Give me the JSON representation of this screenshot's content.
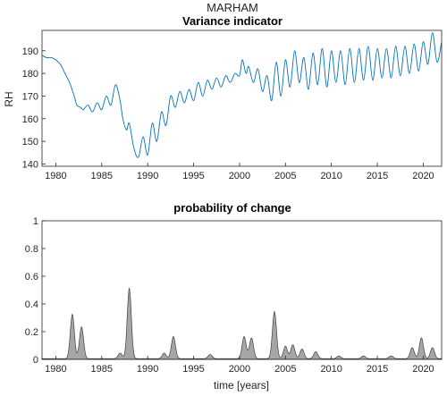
{
  "figure": {
    "suptitle": "MARHAM"
  },
  "chart_data": [
    {
      "type": "line",
      "title": "Variance indicator",
      "xlabel": "",
      "ylabel": "RH",
      "xlim": [
        1978.5,
        2022
      ],
      "ylim": [
        139,
        199
      ],
      "xticks": [
        1980,
        1985,
        1990,
        1995,
        2000,
        2005,
        2010,
        2015,
        2020
      ],
      "yticks": [
        140,
        150,
        160,
        170,
        180,
        190
      ],
      "grid": false,
      "color": "#0072BD",
      "series": [
        {
          "x": [
            1978.5,
            1979.0,
            1979.5,
            1980.0,
            1980.5,
            1981.0,
            1981.5,
            1982.0,
            1982.3,
            1982.7,
            1983.0,
            1983.5,
            1984.0,
            1984.5,
            1985.0,
            1985.5,
            1986.0,
            1986.5,
            1987.0,
            1987.3,
            1987.7,
            1988.0,
            1988.5,
            1989.0,
            1989.5,
            1990.0,
            1990.5,
            1991.0,
            1991.5,
            1992.0,
            1992.5,
            1993.0,
            1993.5,
            1994.0,
            1994.5,
            1995.0,
            1995.5,
            1996.0,
            1996.5,
            1997.0,
            1997.5,
            1998.0,
            1998.5,
            1999.0,
            1999.5,
            2000.0,
            2000.3,
            2000.7,
            2001.0,
            2001.5,
            2002.0,
            2002.5,
            2003.0,
            2003.5,
            2004.0,
            2004.5,
            2005.0,
            2005.5,
            2006.0,
            2006.5,
            2007.0,
            2007.5,
            2008.0,
            2008.5,
            2009.0,
            2009.5,
            2010.0,
            2010.5,
            2011.0,
            2011.5,
            2012.0,
            2012.5,
            2013.0,
            2013.5,
            2014.0,
            2014.5,
            2015.0,
            2015.5,
            2016.0,
            2016.5,
            2017.0,
            2017.5,
            2018.0,
            2018.5,
            2019.0,
            2019.5,
            2020.0,
            2020.5,
            2021.0,
            2021.5,
            2022.0
          ],
          "values": [
            188,
            187,
            187,
            186,
            184,
            180,
            176,
            170,
            166,
            165,
            164,
            166,
            163,
            167,
            164,
            170,
            166,
            175,
            168,
            160,
            155,
            158,
            147,
            143,
            152,
            144,
            158,
            150,
            163,
            157,
            170,
            165,
            172,
            167,
            173,
            168,
            176,
            170,
            177,
            173,
            178,
            174,
            179,
            176,
            180,
            179,
            186,
            180,
            183,
            176,
            182,
            172,
            179,
            168,
            185,
            170,
            186,
            174,
            190,
            176,
            187,
            173,
            189,
            175,
            191,
            174,
            190,
            176,
            190,
            175,
            191,
            176,
            191,
            177,
            192,
            177,
            191,
            178,
            191,
            178,
            192,
            179,
            192,
            180,
            193,
            181,
            194,
            184,
            198,
            185,
            194
          ]
        }
      ]
    },
    {
      "type": "area",
      "title": "probability of change",
      "xlabel": "time [years]",
      "ylabel": "",
      "xlim": [
        1978.5,
        2022
      ],
      "ylim": [
        0,
        1
      ],
      "xticks": [
        1980,
        1985,
        1990,
        1995,
        2000,
        2005,
        2010,
        2015,
        2020
      ],
      "yticks": [
        0,
        0.2,
        0.4,
        0.6,
        0.8,
        1
      ],
      "ytick_labels": [
        "0",
        "0.2",
        "0.4",
        "0.6",
        "0.8",
        "1"
      ],
      "grid": false,
      "fill_color": "#A6A6A6",
      "edge_color": "#404040",
      "peaks": [
        {
          "x": 1981.8,
          "y": 0.32
        },
        {
          "x": 1982.8,
          "y": 0.23
        },
        {
          "x": 1987.0,
          "y": 0.04
        },
        {
          "x": 1988.0,
          "y": 0.51
        },
        {
          "x": 1991.8,
          "y": 0.04
        },
        {
          "x": 1992.8,
          "y": 0.16
        },
        {
          "x": 1996.8,
          "y": 0.03
        },
        {
          "x": 2000.5,
          "y": 0.16
        },
        {
          "x": 2001.3,
          "y": 0.15
        },
        {
          "x": 2003.8,
          "y": 0.34
        },
        {
          "x": 2005.0,
          "y": 0.09
        },
        {
          "x": 2005.8,
          "y": 0.1
        },
        {
          "x": 2006.8,
          "y": 0.07
        },
        {
          "x": 2008.3,
          "y": 0.05
        },
        {
          "x": 2010.8,
          "y": 0.02
        },
        {
          "x": 2013.5,
          "y": 0.02
        },
        {
          "x": 2016.5,
          "y": 0.02
        },
        {
          "x": 2018.8,
          "y": 0.08
        },
        {
          "x": 2019.8,
          "y": 0.15
        },
        {
          "x": 2021.0,
          "y": 0.08
        }
      ]
    }
  ]
}
